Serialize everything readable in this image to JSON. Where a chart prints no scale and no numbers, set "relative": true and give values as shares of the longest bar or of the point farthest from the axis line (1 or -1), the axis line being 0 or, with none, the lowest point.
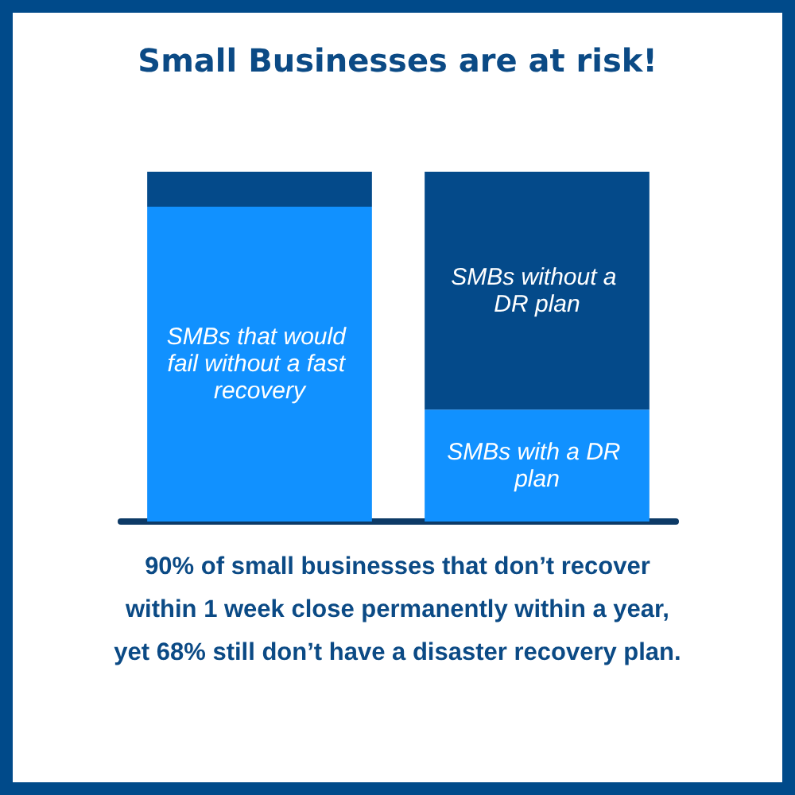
{
  "chart_data": {
    "type": "bar",
    "title": "Small Businesses are at risk!",
    "categories": [
      null,
      null
    ],
    "stacked": true,
    "relative": true,
    "series": [
      {
        "name": "SMBs that would fail without a fast recovery",
        "color": "#1191ff",
        "values": [
          0.9,
          null
        ]
      },
      {
        "name": "SMBs with a DR plan",
        "color": "#1191ff",
        "values": [
          null,
          0.32
        ]
      },
      {
        "color": "#044a8a",
        "values": [
          0.1,
          null
        ]
      },
      {
        "name": "SMBs without a DR plan",
        "color": "#044a8a",
        "values": [
          null,
          0.68
        ]
      }
    ],
    "annotations": [
      "90% of small businesses that don’t recover within 1 week close permanently within a year, yet 68% still don’t have a disaster recovery plan."
    ]
  }
}
